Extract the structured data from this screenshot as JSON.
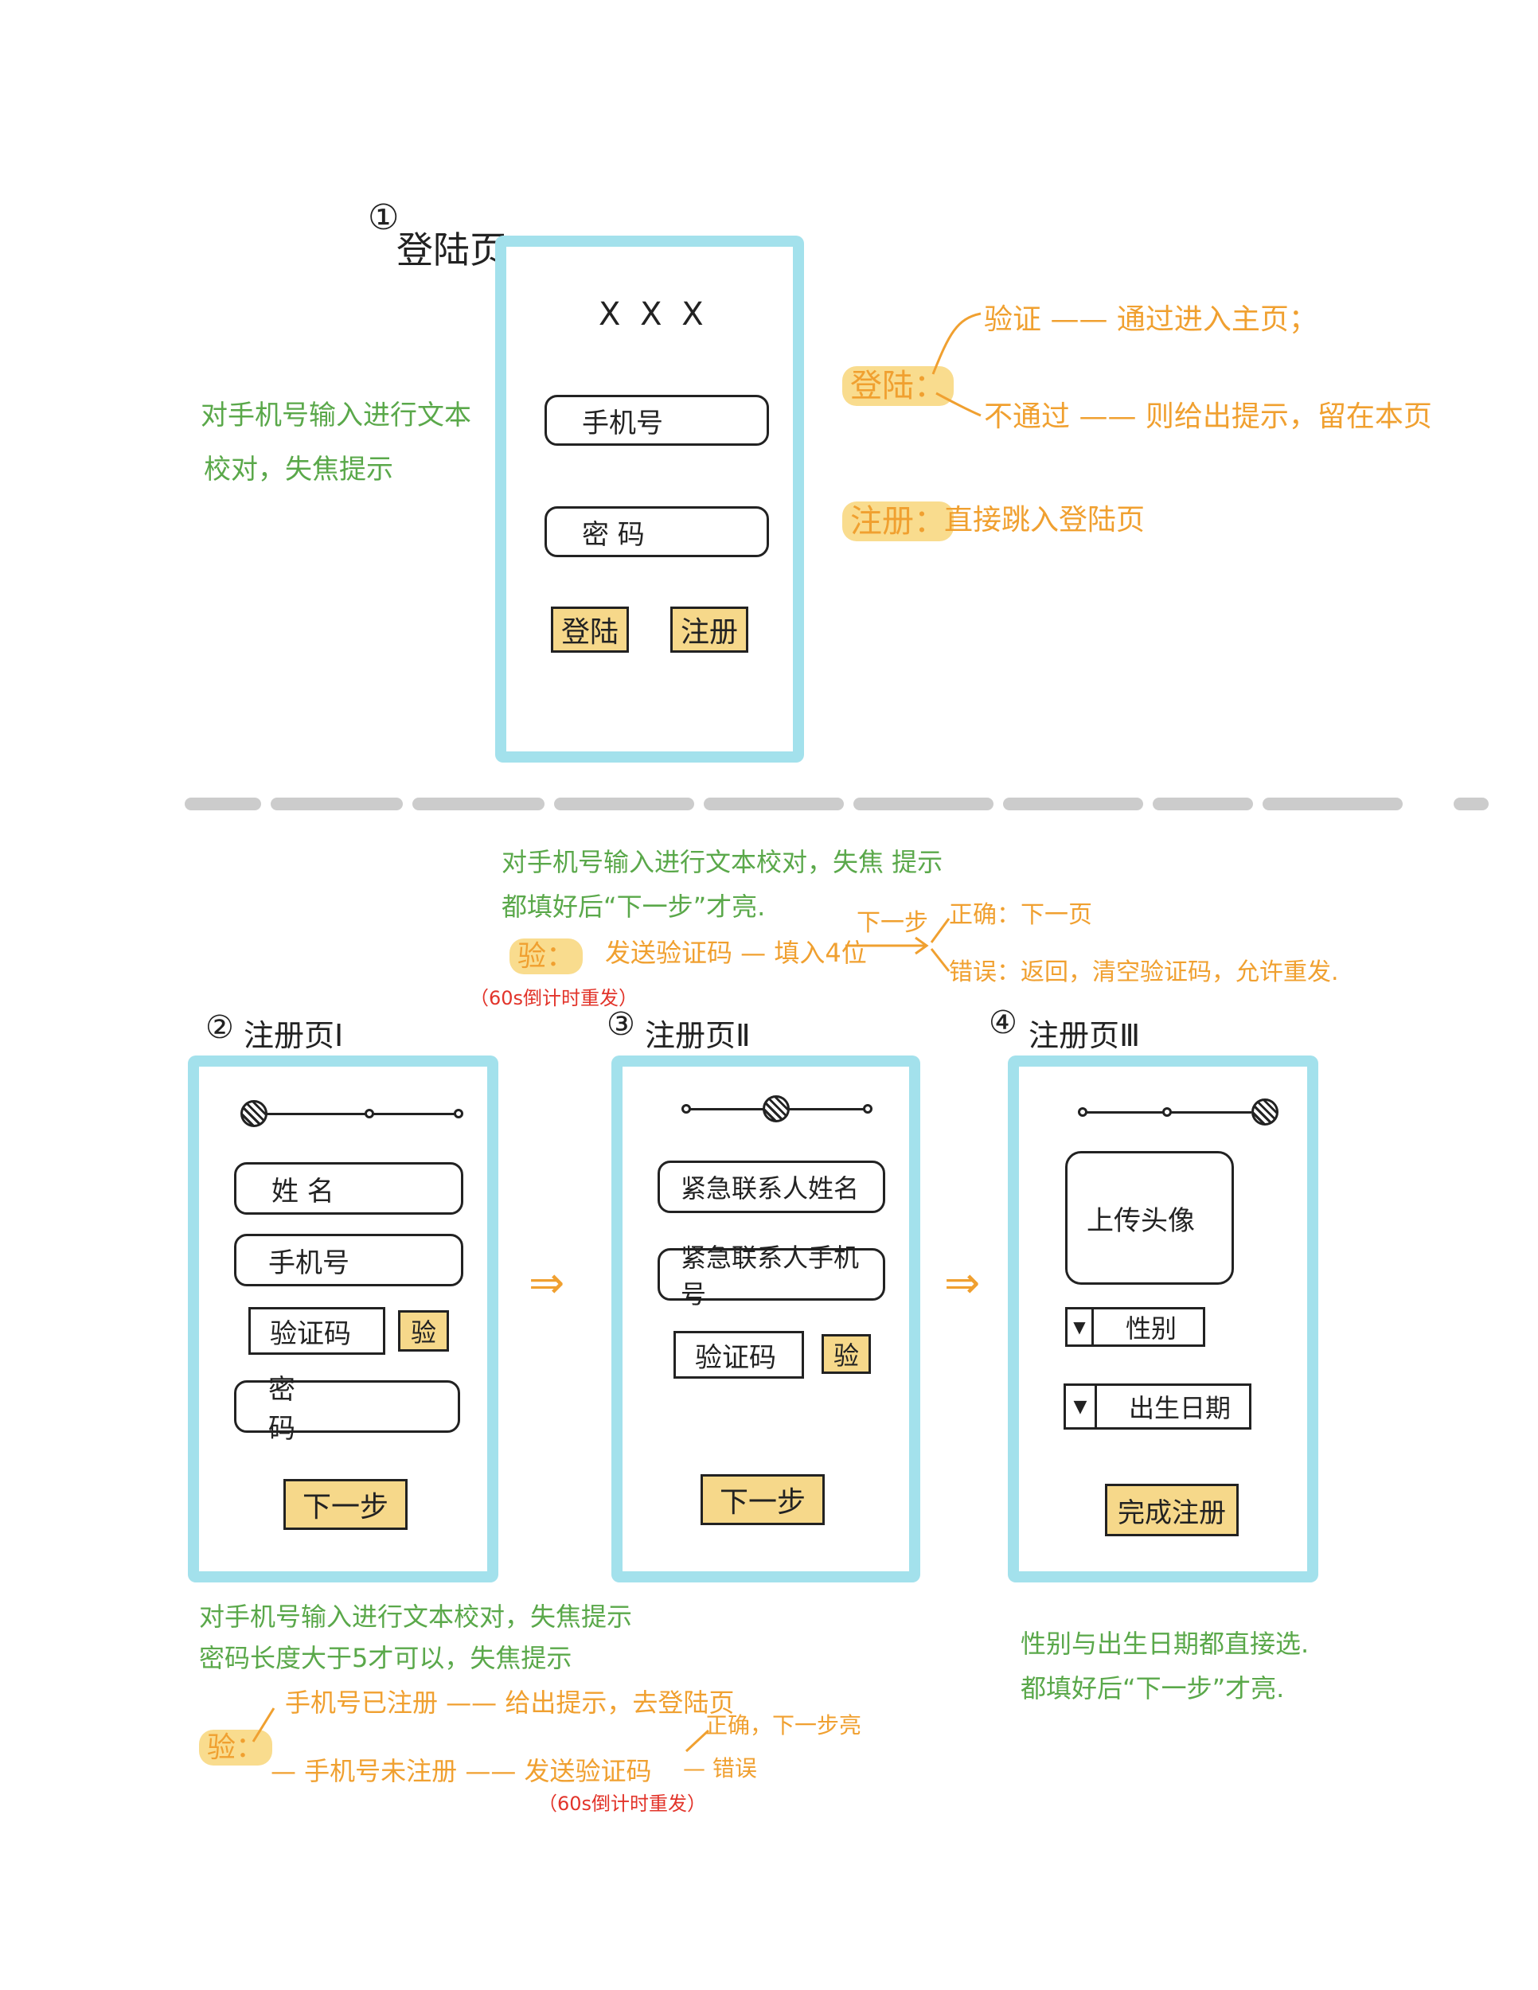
{
  "login": {
    "number": "①",
    "title": "登陆页",
    "app_title": "X X X",
    "phone_placeholder": "手机号",
    "password_placeholder": "密 码",
    "login_button": "登陆",
    "register_button": "注册",
    "left_note_1": "对手机号输入进行文本",
    "left_note_2": "校对，失焦提示",
    "rule_login_label": "登陆：",
    "rule_pass": "验证 —— 通过进入主页；",
    "rule_fail": "不通过 —— 则给出提示，留在本页",
    "rule_register_label": "注册：",
    "rule_register": "直接跳入登陆页"
  },
  "mid_notes": {
    "line1": "对手机号输入进行文本校对，失焦 提示",
    "line2": "都填好后“下一步”才亮.",
    "verify_label": "验：",
    "verify_flow": "发送验证码 — 填入4位",
    "next_label": "下一步",
    "correct": "正确：下一页",
    "wrong": "错误：返回，清空验证码，允许重发.",
    "countdown": "（60s倒计时重发）"
  },
  "reg1": {
    "number": "②",
    "title": "注册页Ⅰ",
    "name_field": "姓 名",
    "phone_field": "手机号",
    "code_field": "验证码",
    "verify_button": "验",
    "password_field": "密 码",
    "next_button": "下一步"
  },
  "reg2": {
    "number": "③",
    "title": "注册页Ⅱ",
    "contact_name": "紧急联系人姓名",
    "contact_phone": "紧急联系人手机号",
    "code_field": "验证码",
    "verify_button": "验",
    "next_button": "下一步"
  },
  "reg3": {
    "number": "④",
    "title": "注册页Ⅲ",
    "avatar": "上传头像",
    "gender": "性别",
    "birthday": "出生日期",
    "finish_button": "完成注册"
  },
  "arrow": "⇒",
  "bottom_notes": {
    "line1": "对手机号输入进行文本校对，失焦提示",
    "line2": "密码长度大于5才可以，失焦提示",
    "verify_label": "验：",
    "registered": "手机号已注册 —— 给出提示，去登陆页",
    "not_registered": "— 手机号未注册 —— 发送验证码",
    "correct": "正确，下一步亮",
    "wrong": "— 错误",
    "countdown": "（60s倒计时重发）"
  },
  "right_notes": {
    "line1": "性别与出生日期都直接选.",
    "line2": "都填好后“下一步”才亮."
  },
  "colors": {
    "frame": "#a3e1ec",
    "highlight": "#f9dc8e",
    "green_note": "#5aa84a",
    "orange_note": "#f0a030",
    "red_note": "#e2342a",
    "divider": "#cccccc"
  }
}
